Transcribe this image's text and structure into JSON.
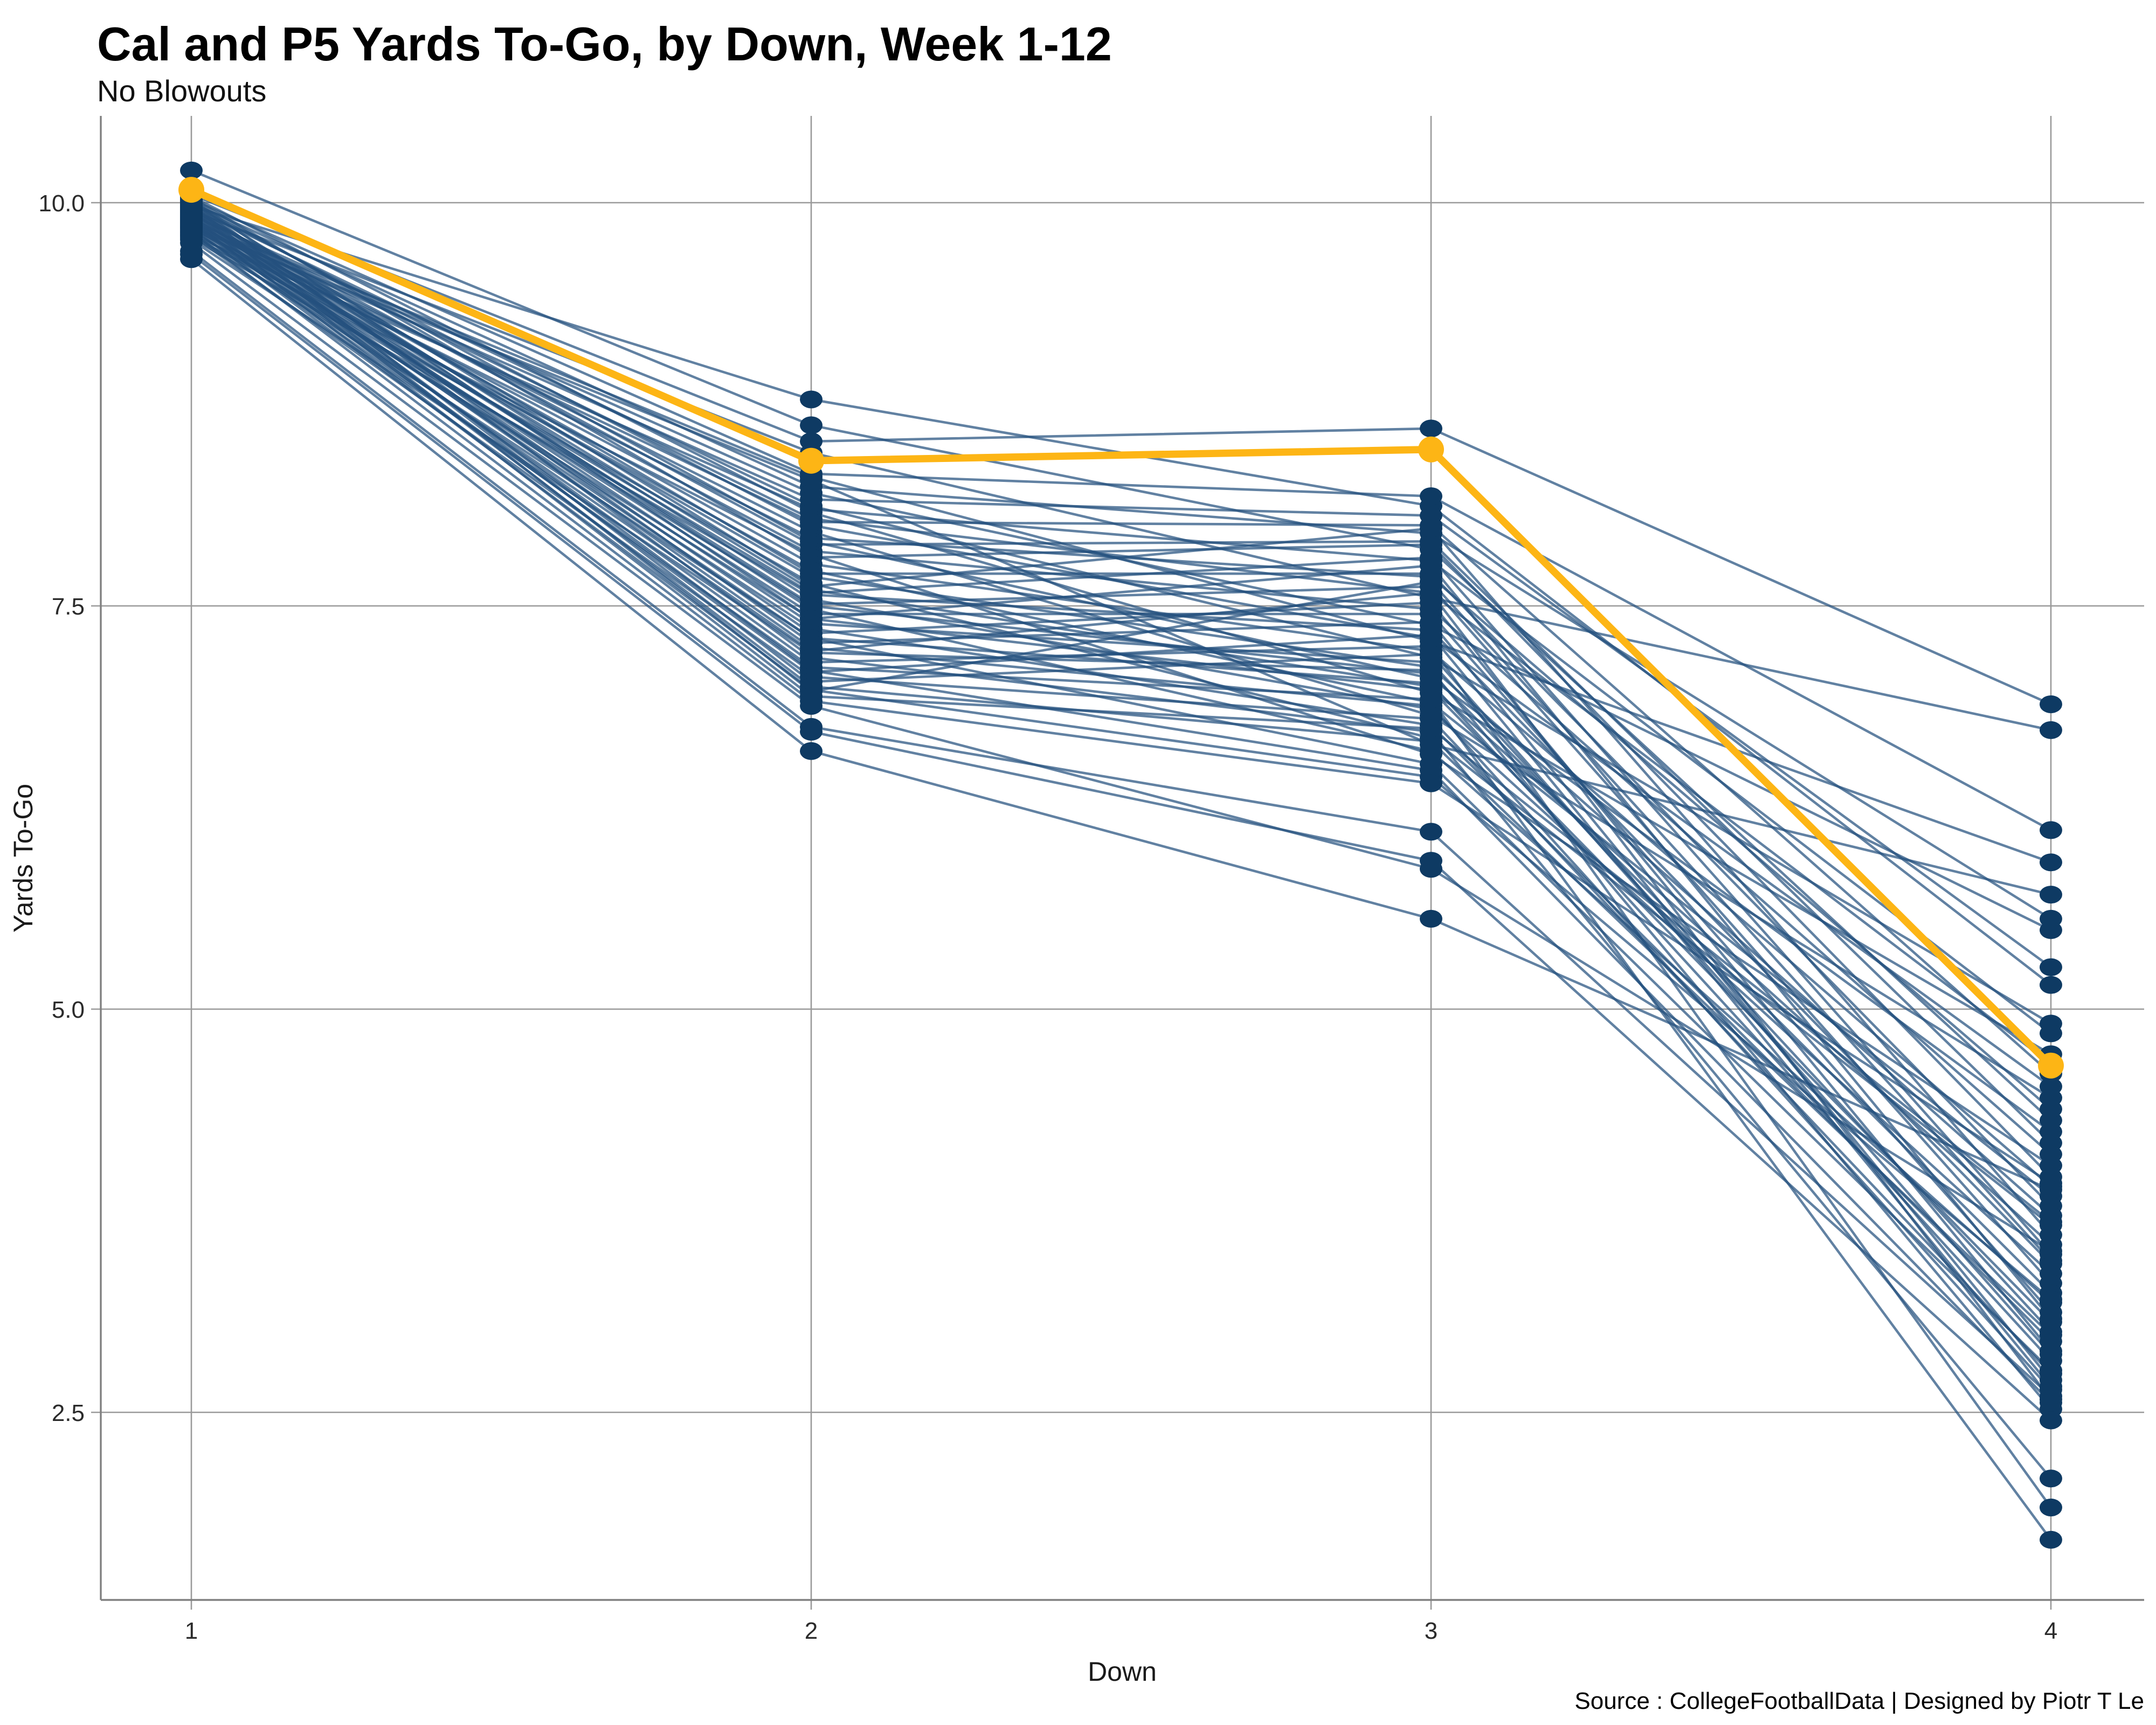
{
  "title": "Cal and P5 Yards To-Go, by Down, Week 1-12",
  "subtitle": "No Blowouts",
  "caption": "Source : CollegeFootballData | Designed by Piotr T Le",
  "axes": {
    "x": {
      "label": "Down",
      "ticks": [
        "1",
        "2",
        "3",
        "4"
      ]
    },
    "y": {
      "label": "Yards To-Go",
      "ticks": [
        "10.0",
        "7.5",
        "5.0",
        "2.5"
      ],
      "tick_values": [
        10.0,
        7.5,
        5.0,
        2.5
      ]
    }
  },
  "colors": {
    "highlight_gold": "#FDB515",
    "point_navy": "#0e3a63",
    "line_blue": "rgba(36,80,126,0.72)",
    "gridline": "#9a9a9a",
    "axis_line": "#808080",
    "text": "#1a1a1a"
  },
  "chart_data": {
    "type": "line",
    "x": [
      1,
      2,
      3,
      4
    ],
    "xlabel": "Down",
    "ylabel": "Yards To-Go",
    "ylim": [
      1.3,
      10.6
    ],
    "yticks": [
      2.5,
      5.0,
      7.5,
      10.0
    ],
    "grid": true,
    "legend": false,
    "highlight_series": {
      "name": "Cal",
      "color": "#FDB515",
      "values": [
        10.08,
        8.4,
        8.47,
        4.65
      ]
    },
    "series_label": "P5 teams",
    "series": [
      [
        9.98,
        8.78,
        8.12,
        5.15
      ],
      [
        10.2,
        8.62,
        7.85,
        4.31
      ],
      [
        10.05,
        8.52,
        8.6,
        6.89
      ],
      [
        9.95,
        8.45,
        7.55,
        6.73
      ],
      [
        10.02,
        8.32,
        8.18,
        6.11
      ],
      [
        9.88,
        8.3,
        7.28,
        5.91
      ],
      [
        9.85,
        8.28,
        6.64,
        5.71
      ],
      [
        10.0,
        8.24,
        7.95,
        5.56
      ],
      [
        9.92,
        8.2,
        7.38,
        5.49
      ],
      [
        9.87,
        8.16,
        8.06,
        5.26
      ],
      [
        9.97,
        8.12,
        7.18,
        4.91
      ],
      [
        9.8,
        8.1,
        7.78,
        4.85
      ],
      [
        10.04,
        8.08,
        6.96,
        4.72
      ],
      [
        9.93,
        8.04,
        7.58,
        4.66
      ],
      [
        9.86,
        8.02,
        8.0,
        4.6
      ],
      [
        9.99,
        8.0,
        7.3,
        4.52
      ],
      [
        9.9,
        7.96,
        6.82,
        4.45
      ],
      [
        9.84,
        7.92,
        7.68,
        4.38
      ],
      [
        10.01,
        7.9,
        7.05,
        4.24
      ],
      [
        9.95,
        7.88,
        7.9,
        4.17
      ],
      [
        9.88,
        7.84,
        7.48,
        4.1
      ],
      [
        9.79,
        7.82,
        6.58,
        4.03
      ],
      [
        10.03,
        7.8,
        7.88,
        3.96
      ],
      [
        9.91,
        7.76,
        7.22,
        3.9
      ],
      [
        9.85,
        7.72,
        6.9,
        3.84
      ],
      [
        9.96,
        7.7,
        7.7,
        3.78
      ],
      [
        9.89,
        7.68,
        7.12,
        3.72
      ],
      [
        9.82,
        7.64,
        6.68,
        3.66
      ],
      [
        10.0,
        7.62,
        7.98,
        3.6
      ],
      [
        9.94,
        7.6,
        7.0,
        3.54
      ],
      [
        9.87,
        7.58,
        7.8,
        3.48
      ],
      [
        9.78,
        7.57,
        7.35,
        3.42
      ],
      [
        9.98,
        7.54,
        6.86,
        3.36
      ],
      [
        9.92,
        7.51,
        7.62,
        3.3
      ],
      [
        9.85,
        7.5,
        7.08,
        3.24
      ],
      [
        9.97,
        7.48,
        6.6,
        3.18
      ],
      [
        9.9,
        7.45,
        7.45,
        3.12
      ],
      [
        9.83,
        7.42,
        6.98,
        3.06
      ],
      [
        10.02,
        7.42,
        7.75,
        3.08
      ],
      [
        9.94,
        7.39,
        7.15,
        3.0
      ],
      [
        9.87,
        7.36,
        6.76,
        2.94
      ],
      [
        9.96,
        7.33,
        7.52,
        2.88
      ],
      [
        9.89,
        7.3,
        7.02,
        2.82
      ],
      [
        9.81,
        7.3,
        6.52,
        2.76
      ],
      [
        9.99,
        7.27,
        7.4,
        2.7
      ],
      [
        9.93,
        7.24,
        6.88,
        2.64
      ],
      [
        9.86,
        7.22,
        7.58,
        2.58
      ],
      [
        9.77,
        7.21,
        7.1,
        2.52
      ],
      [
        10.01,
        7.18,
        6.72,
        2.09
      ],
      [
        9.91,
        7.15,
        7.25,
        1.91
      ],
      [
        9.84,
        7.12,
        6.92,
        1.71
      ],
      [
        9.95,
        7.1,
        6.48,
        2.56
      ],
      [
        9.88,
        7.09,
        7.32,
        2.66
      ],
      [
        9.8,
        7.06,
        6.8,
        2.74
      ],
      [
        9.98,
        7.03,
        7.2,
        2.86
      ],
      [
        9.92,
        7.0,
        6.66,
        2.98
      ],
      [
        9.85,
        6.98,
        6.44,
        3.2
      ],
      [
        9.96,
        6.97,
        7.65,
        3.44
      ],
      [
        9.89,
        6.94,
        6.74,
        3.68
      ],
      [
        9.82,
        6.91,
        6.4,
        3.92
      ],
      [
        9.75,
        6.88,
        5.87,
        3.5
      ],
      [
        9.7,
        6.75,
        6.1,
        2.6
      ],
      [
        9.68,
        6.72,
        5.92,
        2.45
      ],
      [
        9.65,
        6.6,
        5.56,
        3.88
      ]
    ]
  }
}
